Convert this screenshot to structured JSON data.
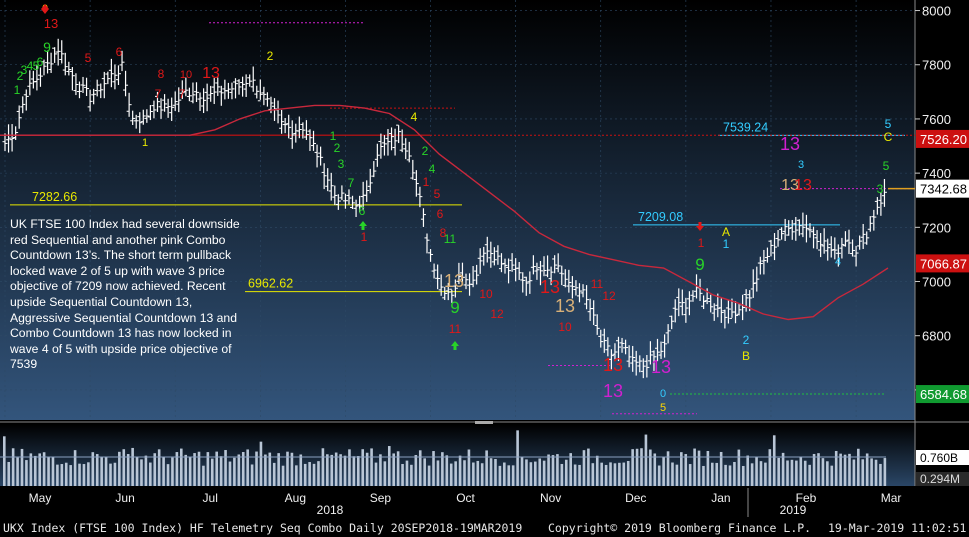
{
  "chart_data": {
    "type": "bar",
    "series_type": "ohlc",
    "title": "UKX Index (FTSE 100 Index) HF Telemetry Seq Combo",
    "period": "Daily 20SEP2018-19MAR2019",
    "x_months": [
      "May",
      "Jun",
      "Jul",
      "Aug",
      "Sep",
      "Oct",
      "Nov",
      "Dec",
      "Jan",
      "Feb",
      "Mar"
    ],
    "x_years": [
      "2018",
      "2019"
    ],
    "ylim": [
      6500,
      8050
    ],
    "y_ticks": [
      "8000",
      "7800",
      "7600",
      "7400",
      "7200",
      "7000",
      "6800",
      "6600"
    ],
    "price_path": [
      [
        "May",
        7510
      ],
      [
        "",
        7560
      ],
      [
        "",
        7700
      ],
      [
        "",
        7750
      ],
      [
        "",
        7800
      ],
      [
        "",
        7860
      ],
      [
        "",
        7780
      ],
      [
        "",
        7720
      ],
      [
        "Jun",
        7680
      ],
      [
        "",
        7720
      ],
      [
        "",
        7760
      ],
      [
        "",
        7790
      ],
      [
        "",
        7600
      ],
      [
        "",
        7600
      ],
      [
        "",
        7650
      ],
      [
        "",
        7640
      ],
      [
        "Jul",
        7660
      ],
      [
        "",
        7700
      ],
      [
        "",
        7700
      ],
      [
        "",
        7680
      ],
      [
        "",
        7700
      ],
      [
        "",
        7710
      ],
      [
        "",
        7720
      ],
      [
        "",
        7750
      ],
      [
        "Aug",
        7700
      ],
      [
        "",
        7640
      ],
      [
        "",
        7580
      ],
      [
        "",
        7560
      ],
      [
        "",
        7570
      ],
      [
        "",
        7500
      ],
      [
        "",
        7410
      ],
      [
        "",
        7320
      ],
      [
        "Sep",
        7300
      ],
      [
        "",
        7280
      ],
      [
        "",
        7320
      ],
      [
        "",
        7480
      ],
      [
        "",
        7510
      ],
      [
        "",
        7540
      ],
      [
        "",
        7480
      ],
      [
        "",
        7300
      ],
      [
        "Oct",
        7100
      ],
      [
        "",
        6980
      ],
      [
        "",
        6960
      ],
      [
        "",
        7030
      ],
      [
        "",
        7000
      ],
      [
        "",
        7120
      ],
      [
        "",
        7100
      ],
      [
        "",
        7050
      ],
      [
        "Nov",
        7040
      ],
      [
        "",
        7000
      ],
      [
        "",
        7060
      ],
      [
        "",
        7050
      ],
      [
        "",
        7060
      ],
      [
        "",
        6980
      ],
      [
        "",
        6980
      ],
      [
        "",
        6900
      ],
      [
        "Dec",
        6780
      ],
      [
        "",
        6730
      ],
      [
        "",
        6760
      ],
      [
        "",
        6700
      ],
      [
        "",
        6690
      ],
      [
        "",
        6720
      ],
      [
        "",
        6760
      ],
      [
        "",
        6900
      ],
      [
        "Jan",
        6920
      ],
      [
        "",
        6960
      ],
      [
        "",
        6930
      ],
      [
        "",
        6900
      ],
      [
        "",
        6880
      ],
      [
        "",
        6900
      ],
      [
        "",
        6950
      ],
      [
        "",
        7050
      ],
      [
        "Feb",
        7120
      ],
      [
        "",
        7180
      ],
      [
        "",
        7200
      ],
      [
        "",
        7210
      ],
      [
        "",
        7180
      ],
      [
        "",
        7140
      ],
      [
        "",
        7100
      ],
      [
        "",
        7160
      ],
      [
        "Mar",
        7120
      ],
      [
        "",
        7180
      ],
      [
        "",
        7280
      ],
      [
        "",
        7340
      ]
    ],
    "moving_average": [
      7540,
      7560,
      7600,
      7630,
      7640,
      7650,
      7650,
      7640,
      7620,
      7560,
      7470,
      7400,
      7330,
      7260,
      7180,
      7130,
      7100,
      7080,
      7060,
      7050,
      7000,
      6950,
      6920,
      6880,
      6860,
      6870,
      6940,
      6990,
      7050
    ],
    "last_price": 7342.68,
    "ma_value": 7066.87,
    "price_labels": [
      {
        "label": "7526.20",
        "value": 7526.2,
        "color": "#cc1010"
      },
      {
        "label": "7342.68",
        "value": 7342.68,
        "color": "#ffffff"
      },
      {
        "label": "7066.87",
        "value": 7066.87,
        "color": "#cc1010"
      },
      {
        "label": "6584.68",
        "value": 6584.68,
        "color": "#109a30"
      }
    ],
    "levels": [
      {
        "label": "7539.24",
        "value": 7539.24,
        "color": "#33ccff"
      },
      {
        "label": "7282.66",
        "value": 7282.66,
        "color": "#e8e800"
      },
      {
        "label": "7209.08",
        "value": 7209.08,
        "color": "#33ccff"
      },
      {
        "label": "6962.62",
        "value": 6962.62,
        "color": "#e8e800"
      }
    ],
    "annotations": [
      "0",
      "13",
      "9",
      "1",
      "2",
      "3",
      "4",
      "5",
      "6",
      "7",
      "8",
      "10",
      "11",
      "12",
      "A",
      "B",
      "C"
    ],
    "volume": {
      "ticks": [
        "0.760B",
        "0.294M"
      ],
      "current": 0.76
    }
  },
  "note": {
    "text": "UK FTSE 100 Index had several downside red Sequential and another pink Combo Countdown 13’s.  The short term pullback locked wave 2 of 5 up with wave 3 price objective of 7209 now achieved.  Recent upside Sequential Countdown 13, Aggressive Sequential Countdown 13 and Combo Countdown 13 has now locked in wave 4 of 5 with upside price objective of 7539"
  },
  "footer": {
    "left": "UKX Index (FTSE 100 Index) HF Telemetry Seq Combo  Daily 20SEP2018-19MAR2019",
    "center": "Copyright© 2019 Bloomberg Finance L.P.",
    "right": "19-Mar-2019 11:02:51"
  },
  "colors": {
    "up_bar": "#ffffff",
    "ma_line": "#c8283c",
    "support_red": "#cc1010",
    "sequential_green": "#28d428",
    "sequential_red": "#e01818",
    "combo_pink": "#d020d0",
    "sequential_tan": "#d8b078"
  }
}
